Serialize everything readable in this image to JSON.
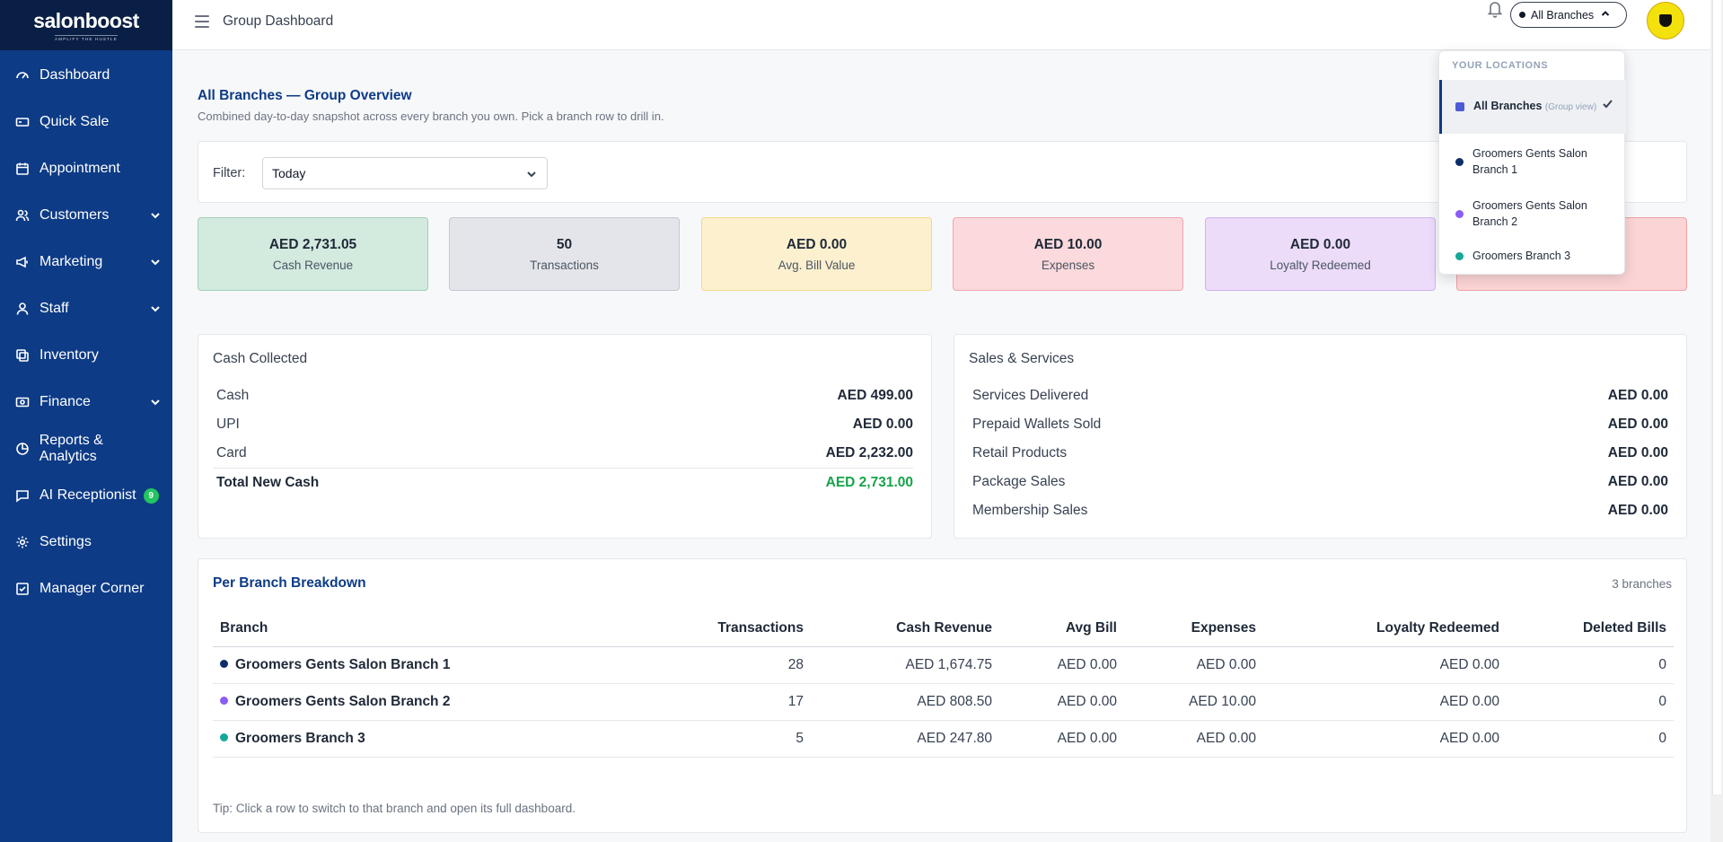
{
  "brand": {
    "name": "salonboost",
    "tagline": "AMPLIFY THE HUSTLE"
  },
  "sidebar": {
    "items": [
      {
        "label": "Dashboard",
        "icon": "gauge-icon"
      },
      {
        "label": "Quick Sale",
        "icon": "cash-icon"
      },
      {
        "label": "Appointment",
        "icon": "calendar-icon"
      },
      {
        "label": "Customers",
        "icon": "users-icon",
        "expandable": true
      },
      {
        "label": "Marketing",
        "icon": "megaphone-icon",
        "expandable": true
      },
      {
        "label": "Staff",
        "icon": "user-icon",
        "expandable": true
      },
      {
        "label": "Inventory",
        "icon": "boxes-icon"
      },
      {
        "label": "Finance",
        "icon": "wallet-icon",
        "expandable": true
      },
      {
        "label": "Reports & Analytics",
        "icon": "chart-icon"
      },
      {
        "label": "AI Receptionist",
        "icon": "chat-icon",
        "badge": "9"
      },
      {
        "label": "Settings",
        "icon": "gear-icon"
      },
      {
        "label": "Manager Corner",
        "icon": "checklist-icon"
      }
    ]
  },
  "header": {
    "title": "Group Dashboard",
    "branch_selector": "All Branches"
  },
  "overview": {
    "title": "All Branches — Group Overview",
    "subtitle": "Combined day-to-day snapshot across every branch you own. Pick a branch row to drill in."
  },
  "filter": {
    "label": "Filter:",
    "value": "Today"
  },
  "stats": [
    {
      "value": "AED 2,731.05",
      "label": "Cash Revenue",
      "bg": "#d3eadf",
      "border": "#9fd0b7"
    },
    {
      "value": "50",
      "label": "Transactions",
      "bg": "#e4e5ea",
      "border": "#c5c8d0"
    },
    {
      "value": "AED 0.00",
      "label": "Avg. Bill Value",
      "bg": "#fdf0cf",
      "border": "#f2d98c"
    },
    {
      "value": "AED 10.00",
      "label": "Expenses",
      "bg": "#fbd9dc",
      "border": "#f0a7ae"
    },
    {
      "value": "AED 0.00",
      "label": "Loyalty Redeemed",
      "bg": "#ecdcfa",
      "border": "#cfb2ef"
    },
    {
      "value": "",
      "label": "",
      "bg": "#fbd4d5",
      "border": "#f0a1a5"
    }
  ],
  "cash_collected": {
    "title": "Cash Collected",
    "rows": [
      {
        "label": "Cash",
        "value": "AED 499.00"
      },
      {
        "label": "UPI",
        "value": "AED 0.00"
      },
      {
        "label": "Card",
        "value": "AED 2,232.00"
      }
    ],
    "total": {
      "label": "Total New Cash",
      "value": "AED 2,731.00"
    }
  },
  "sales_services": {
    "title": "Sales & Services",
    "rows": [
      {
        "label": "Services Delivered",
        "value": "AED 0.00"
      },
      {
        "label": "Prepaid Wallets Sold",
        "value": "AED 0.00"
      },
      {
        "label": "Retail Products",
        "value": "AED 0.00"
      },
      {
        "label": "Package Sales",
        "value": "AED 0.00"
      },
      {
        "label": "Membership Sales",
        "value": "AED 0.00"
      }
    ]
  },
  "breakdown": {
    "title": "Per Branch Breakdown",
    "count": "3 branches",
    "columns": [
      "Branch",
      "Transactions",
      "Cash Revenue",
      "Avg Bill",
      "Expenses",
      "Loyalty Redeemed",
      "Deleted Bills"
    ],
    "rows": [
      {
        "branch": "Groomers Gents Salon Branch 1",
        "color": "#0d2d6b",
        "transactions": "28",
        "revenue": "AED 1,674.75",
        "avg": "AED 0.00",
        "expenses": "AED 0.00",
        "loyalty": "AED 0.00",
        "deleted": "0"
      },
      {
        "branch": "Groomers Gents Salon Branch 2",
        "color": "#8b5cf6",
        "transactions": "17",
        "revenue": "AED 808.50",
        "avg": "AED 0.00",
        "expenses": "AED 10.00",
        "loyalty": "AED 0.00",
        "deleted": "0"
      },
      {
        "branch": "Groomers Branch 3",
        "color": "#14a89a",
        "transactions": "5",
        "revenue": "AED 247.80",
        "avg": "AED 0.00",
        "expenses": "AED 0.00",
        "loyalty": "AED 0.00",
        "deleted": "0"
      }
    ],
    "tip": "Tip: Click a row to switch to that branch and open its full dashboard."
  },
  "locations_dropdown": {
    "header": "YOUR LOCATIONS",
    "items": [
      {
        "label": "All Branches",
        "note": "(Group view)",
        "color": "#4f5bd5",
        "selected": true
      },
      {
        "label": "Groomers Gents Salon Branch 1",
        "color": "#0d2d6b"
      },
      {
        "label": "Groomers Gents Salon Branch 2",
        "color": "#8b5cf6"
      },
      {
        "label": "Groomers Branch 3",
        "color": "#14a89a"
      }
    ]
  }
}
